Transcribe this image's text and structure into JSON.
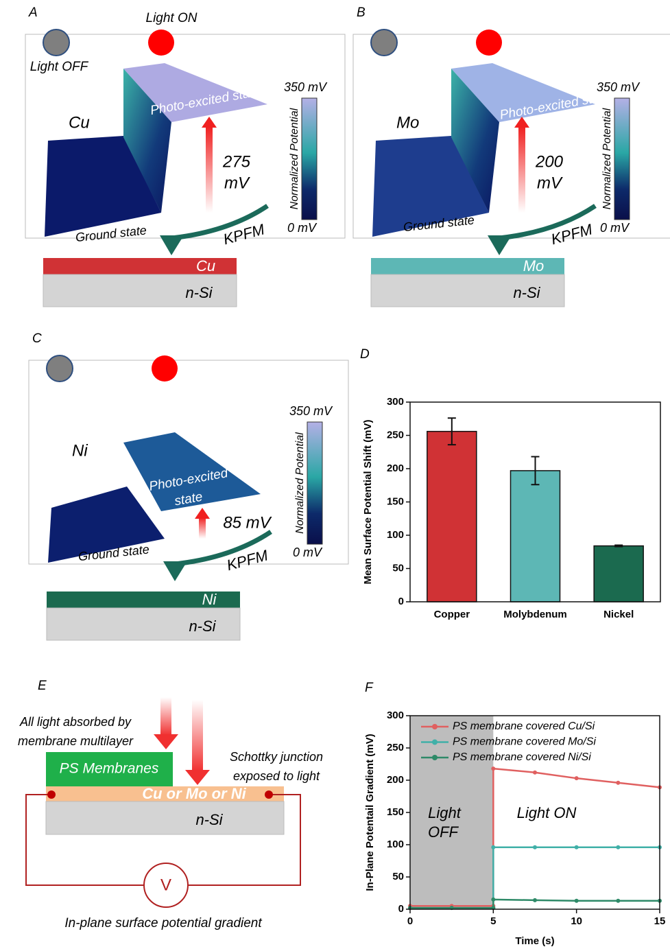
{
  "panels": [
    {
      "label": "A",
      "light_off": "Light OFF",
      "light_on": "Light ON",
      "metal": "Cu",
      "excited": "Photo-excited state",
      "shift": [
        "275",
        "mV"
      ],
      "colorbar_title": "Normalized Potential",
      "colorbar_max": "350 mV",
      "colorbar_min": "0 mV",
      "ground": "Ground state",
      "technique": "KPFM",
      "layer_metal": "Cu",
      "layer_substrate": "n-Si"
    },
    {
      "label": "B",
      "metal": "Mo",
      "excited": "Photo-excited state",
      "shift": [
        "200",
        "mV"
      ],
      "colorbar_title": "Normalized Potential",
      "colorbar_max": "350 mV",
      "colorbar_min": "0 mV",
      "ground": "Ground state",
      "technique": "KPFM",
      "layer_metal": "Mo",
      "layer_substrate": "n-Si"
    },
    {
      "label": "C",
      "metal": "Ni",
      "excited": [
        "Photo-excited",
        "state"
      ],
      "shift": [
        "85 mV"
      ],
      "colorbar_title": "Normalized Potential",
      "colorbar_max": "350 mV",
      "colorbar_min": "0 mV",
      "ground": "Ground state",
      "technique": "KPFM",
      "layer_metal": "Ni",
      "layer_substrate": "n-Si"
    }
  ],
  "schematic": {
    "label": "E",
    "absorbed": [
      "All light absorbed by",
      "membrane multilayer"
    ],
    "membrane": "PS Membranes",
    "junction": [
      "Schottky junction",
      "exposed to light"
    ],
    "metal_layer": "Cu or Mo or Ni",
    "substrate": "n-Si",
    "meter": "V",
    "caption": "In-plane surface potential gradient"
  },
  "chart_data": [
    {
      "type": "bar",
      "panel_label": "D",
      "ylabel": "Mean Surface Potential Shift (mV)",
      "categories": [
        "Copper",
        "Molybdenum",
        "Nickel"
      ],
      "values": [
        256,
        197,
        84
      ],
      "errors": [
        20,
        21,
        1
      ],
      "colors": [
        "#d03235",
        "#5db7b5",
        "#1b6a4f"
      ],
      "ylim": [
        0,
        300
      ],
      "yticks": [
        0,
        50,
        100,
        150,
        200,
        250,
        300
      ]
    },
    {
      "type": "line",
      "panel_label": "F",
      "xlabel": "Time (s)",
      "ylabel": "In-Plane Potentail Gradient (mV)",
      "x": [
        0,
        2.5,
        5,
        5,
        7.5,
        10,
        12.5,
        15
      ],
      "series": [
        {
          "name": "PS membrane covered Cu/Si",
          "color": "#e06060",
          "values": [
            5,
            5,
            5,
            218,
            212,
            203,
            196,
            189
          ]
        },
        {
          "name": "PS membrane covered Mo/Si",
          "color": "#40b0a8",
          "values": [
            2,
            2,
            2,
            96,
            96,
            96,
            96,
            96
          ]
        },
        {
          "name": "PS membrane covered Ni/Si",
          "color": "#2e8a68",
          "values": [
            2,
            2,
            2,
            15,
            14,
            13,
            13,
            13
          ]
        }
      ],
      "shade_xrange": [
        0,
        5
      ],
      "annotations": [
        "Light",
        "OFF",
        "Light ON"
      ],
      "xlim": [
        0,
        15
      ],
      "xticks": [
        0,
        5,
        10,
        15
      ],
      "ylim": [
        0,
        300
      ],
      "yticks": [
        0,
        50,
        100,
        150,
        200,
        250,
        300
      ]
    }
  ]
}
